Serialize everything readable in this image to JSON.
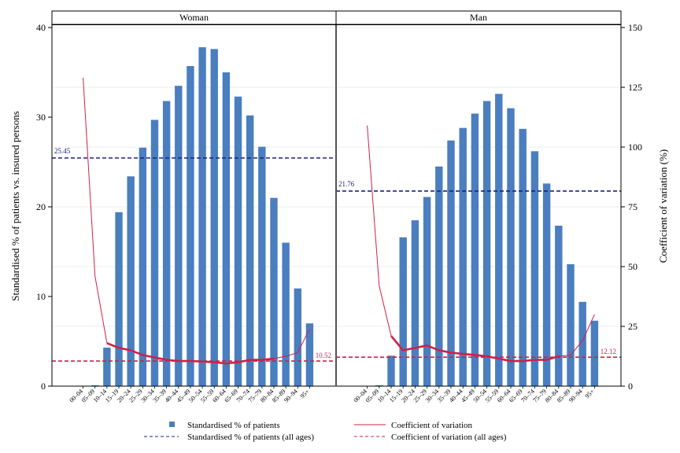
{
  "chart_data": {
    "type": "bar",
    "ylabel_left": "Standardised % of patients vs. insured persons",
    "ylabel_right": "Coefficient of variation (%)",
    "ylim_left": [
      0,
      40
    ],
    "ylim_right": [
      0,
      150
    ],
    "yticks_left": [
      "0",
      "10",
      "20",
      "30",
      "40"
    ],
    "yticks_right": [
      "0",
      "25",
      "50",
      "75",
      "100",
      "125",
      "150"
    ],
    "grid": true,
    "legend_position": "bottom",
    "categories": [
      "00–04",
      "05–09",
      "10–14",
      "15–19",
      "20–24",
      "25–29",
      "30–34",
      "35–39",
      "40–44",
      "45–49",
      "50–54",
      "55–59",
      "60–64",
      "65–69",
      "70–74",
      "75–79",
      "80–84",
      "85–89",
      "90–94",
      "95+"
    ],
    "legend": {
      "bars": "Standardised % of patients",
      "cv": "Coefficient of variation",
      "avg_pct": "Standardised % of patients (all ages)",
      "avg_cv": "Coefficient of variation (all ages)"
    },
    "colors": {
      "bar": "#4a7ebf",
      "cv": "#d0204a",
      "avg_pct": "#1a237e",
      "avg_cv": "#d0204a"
    },
    "panels": [
      {
        "title": "Woman",
        "bar_values": [
          0.0,
          0.1,
          4.3,
          19.4,
          23.4,
          26.6,
          29.7,
          31.8,
          33.5,
          35.7,
          37.8,
          37.6,
          35.0,
          32.3,
          30.2,
          26.7,
          21.0,
          16.0,
          10.9,
          7.0
        ],
        "cv_values": [
          129,
          46,
          18,
          16,
          15,
          13,
          12,
          11,
          10.5,
          10.5,
          10.3,
          10,
          9.5,
          10,
          11,
          11,
          11.5,
          12.5,
          14,
          24
        ],
        "avg_pct": 25.45,
        "avg_pct_label": "25.45",
        "avg_cv": 10.52,
        "avg_cv_label": "10.52"
      },
      {
        "title": "Man",
        "bar_values": [
          0.0,
          0.1,
          3.4,
          16.6,
          18.5,
          21.1,
          24.5,
          27.4,
          28.8,
          30.4,
          31.8,
          32.6,
          31.0,
          28.7,
          26.2,
          22.6,
          17.9,
          13.6,
          9.4,
          7.3
        ],
        "cv_values": [
          109,
          42,
          21,
          15,
          16,
          17,
          15,
          14,
          13.5,
          13,
          12.5,
          11.5,
          10.5,
          10.5,
          11,
          11,
          12.5,
          13,
          19,
          30
        ],
        "avg_pct": 21.76,
        "avg_pct_label": "21.76",
        "avg_cv": 12.12,
        "avg_cv_label": "12.12"
      }
    ]
  }
}
